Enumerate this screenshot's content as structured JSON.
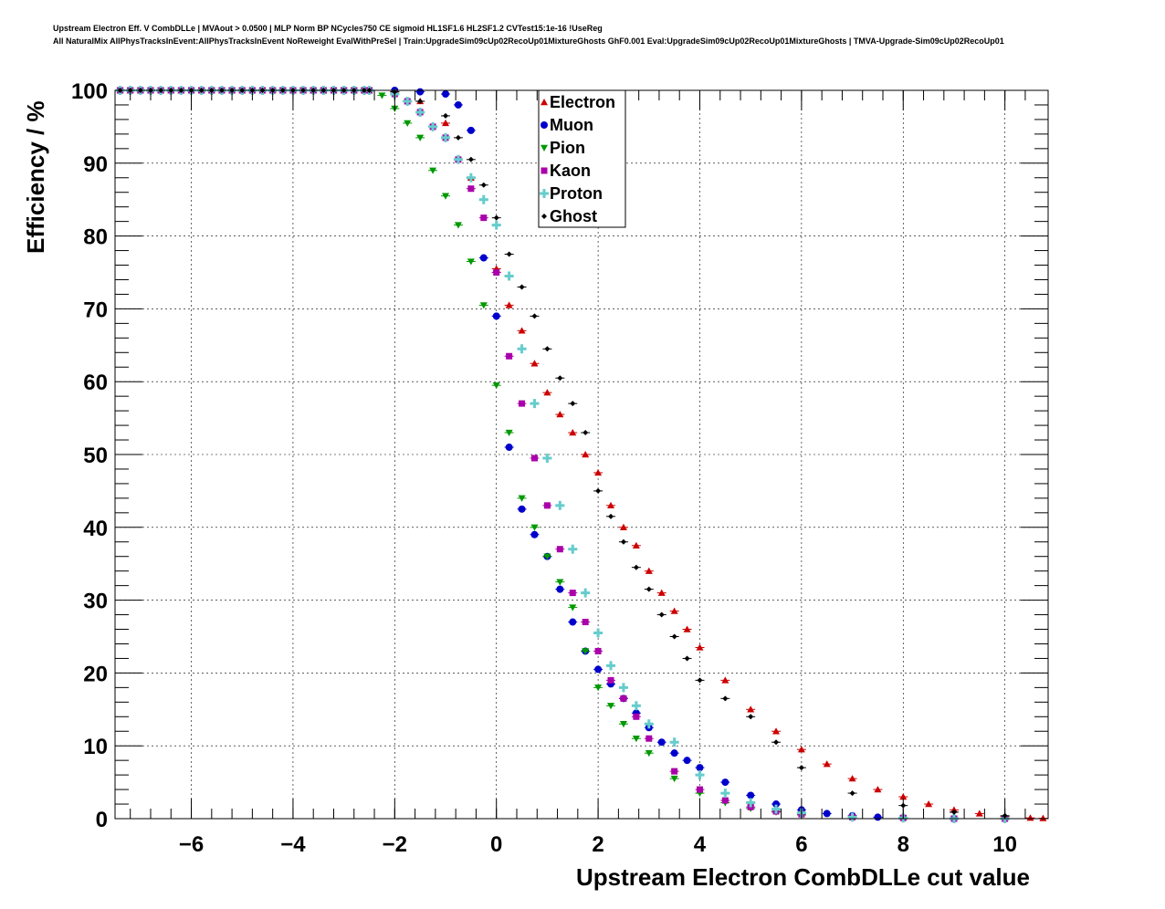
{
  "header": {
    "title_line1": "Upstream Electron Eff. V CombDLLe | MVAout > 0.0500 | MLP Norm BP NCycles750 CE sigmoid HL1SF1.6 HL2SF1.2 CVTest15:1e-16 !UseReg",
    "title_line2": "All NaturalMix AllPhysTracksInEvent:AllPhysTracksInEvent NoReweight EvalWithPreSel | Train:UpgradeSim09cUp02RecoUp01MixtureGhosts GhF0.001 Eval:UpgradeSim09cUp02RecoUp01MixtureGhosts | TMVA-Upgrade-Sim09cUp02RecoUp01"
  },
  "chart_data": {
    "type": "scatter",
    "xlabel": "Upstream Electron CombDLLe cut value",
    "ylabel": "Efficiency / %",
    "xlim": [
      -7.5,
      10.85
    ],
    "ylim": [
      0,
      100
    ],
    "xticks": [
      -6,
      -4,
      -2,
      0,
      2,
      4,
      6,
      8,
      10
    ],
    "xtick_labels": [
      "−6",
      "−4",
      "−2",
      "0",
      "2",
      "4",
      "6",
      "8",
      "10"
    ],
    "yticks": [
      0,
      10,
      20,
      30,
      40,
      50,
      60,
      70,
      80,
      90,
      100
    ],
    "ytick_labels": [
      "0",
      "10",
      "20",
      "30",
      "40",
      "50",
      "60",
      "70",
      "80",
      "90",
      "100"
    ],
    "grid": true,
    "legend_position": "top-center",
    "series": [
      {
        "name": "Electron",
        "color": "#cc0000",
        "marker": "triangle-up",
        "x": [
          -2.5,
          -2.0,
          -1.5,
          -1.0,
          -0.5,
          0.0,
          0.25,
          0.5,
          0.75,
          1.0,
          1.25,
          1.5,
          1.75,
          2.0,
          2.25,
          2.5,
          2.75,
          3.0,
          3.25,
          3.5,
          3.75,
          4.0,
          4.5,
          5.0,
          5.5,
          6.0,
          6.5,
          7.0,
          7.5,
          8.0,
          8.5,
          9.0,
          9.5,
          10.0,
          10.5,
          10.75
        ],
        "y": [
          100,
          99.8,
          98.5,
          95.5,
          88.0,
          75.5,
          70.5,
          67.0,
          62.5,
          58.5,
          55.5,
          53.0,
          50.0,
          47.5,
          43.0,
          40.0,
          37.5,
          34.0,
          31.0,
          28.5,
          26.0,
          23.5,
          19.0,
          15.0,
          12.0,
          9.5,
          7.5,
          5.5,
          4.0,
          3.0,
          2.0,
          1.2,
          0.7,
          0.3,
          0.1,
          0.05
        ]
      },
      {
        "name": "Muon",
        "color": "#0000cc",
        "marker": "circle",
        "x": [
          -2.5,
          -2.0,
          -1.5,
          -1.0,
          -0.75,
          -0.5,
          -0.25,
          0.0,
          0.25,
          0.5,
          0.75,
          1.0,
          1.25,
          1.5,
          1.75,
          2.0,
          2.25,
          2.5,
          2.75,
          3.0,
          3.25,
          3.5,
          3.75,
          4.0,
          4.5,
          5.0,
          5.5,
          6.0,
          6.5,
          7.0,
          7.5,
          8.0,
          9.0,
          10.0
        ],
        "y": [
          100,
          100,
          99.8,
          99.5,
          98.0,
          94.5,
          77.0,
          69.0,
          51.0,
          42.5,
          39.0,
          36.0,
          31.5,
          27.0,
          23.0,
          20.5,
          18.5,
          16.5,
          14.5,
          12.5,
          10.5,
          9.0,
          8.0,
          7.0,
          5.0,
          3.2,
          2.0,
          1.2,
          0.7,
          0.4,
          0.2,
          0.1,
          0.0,
          0.0
        ]
      },
      {
        "name": "Pion",
        "color": "#009900",
        "marker": "triangle-down",
        "x": [
          -2.5,
          -2.25,
          -2.0,
          -1.75,
          -1.5,
          -1.25,
          -1.0,
          -0.75,
          -0.5,
          -0.25,
          0.0,
          0.25,
          0.5,
          0.75,
          1.0,
          1.25,
          1.5,
          1.75,
          2.0,
          2.25,
          2.5,
          2.75,
          3.0,
          3.5,
          4.0,
          4.5,
          5.0,
          5.5,
          6.0,
          7.0,
          8.0,
          9.0,
          10.0
        ],
        "y": [
          100,
          99.3,
          97.5,
          95.5,
          93.5,
          89.0,
          85.5,
          81.5,
          76.5,
          70.5,
          59.5,
          53.0,
          44.0,
          40.0,
          36.0,
          32.5,
          29.0,
          23.0,
          18.0,
          15.5,
          13.0,
          11.0,
          9.0,
          5.5,
          3.5,
          2.2,
          1.4,
          0.9,
          0.5,
          0.2,
          0.1,
          0.0,
          0.0
        ]
      },
      {
        "name": "Kaon",
        "color": "#aa00aa",
        "marker": "square",
        "x": [
          -2.5,
          -2.0,
          -1.75,
          -1.5,
          -1.25,
          -1.0,
          -0.75,
          -0.5,
          -0.25,
          0.0,
          0.25,
          0.5,
          0.75,
          1.0,
          1.25,
          1.5,
          1.75,
          2.0,
          2.25,
          2.5,
          2.75,
          3.0,
          3.5,
          4.0,
          4.5,
          5.0,
          5.5,
          6.0,
          7.0,
          8.0,
          9.0,
          10.0
        ],
        "y": [
          100,
          99.5,
          98.5,
          97.0,
          95.0,
          93.5,
          90.5,
          86.5,
          82.5,
          75.0,
          63.5,
          57.0,
          49.5,
          43.0,
          37.0,
          31.0,
          27.0,
          23.0,
          19.0,
          16.5,
          14.0,
          11.0,
          6.5,
          4.0,
          2.5,
          1.6,
          1.0,
          0.6,
          0.2,
          0.1,
          0.0,
          0.0
        ]
      },
      {
        "name": "Proton",
        "color": "#66cccc",
        "marker": "cross",
        "x": [
          -2.5,
          -2.0,
          -1.75,
          -1.5,
          -1.25,
          -1.0,
          -0.75,
          -0.5,
          -0.25,
          0.0,
          0.25,
          0.5,
          0.75,
          1.0,
          1.25,
          1.5,
          1.75,
          2.0,
          2.25,
          2.5,
          2.75,
          3.0,
          3.5,
          4.0,
          4.5,
          5.0,
          5.5,
          6.0,
          7.0,
          8.0,
          9.0,
          10.0
        ],
        "y": [
          100,
          99.5,
          98.5,
          97.0,
          95.0,
          93.5,
          90.5,
          88.0,
          85.0,
          81.5,
          74.5,
          64.5,
          57.0,
          49.5,
          43.0,
          37.0,
          31.0,
          25.5,
          21.0,
          18.0,
          15.5,
          13.0,
          10.5,
          6.0,
          3.5,
          2.2,
          1.3,
          0.8,
          0.2,
          0.1,
          0.0,
          0.0
        ]
      },
      {
        "name": "Ghost",
        "color": "#000000",
        "marker": "diamond",
        "x": [
          -2.5,
          -2.0,
          -1.5,
          -1.0,
          -0.75,
          -0.5,
          -0.25,
          0.0,
          0.25,
          0.5,
          0.75,
          1.0,
          1.25,
          1.5,
          1.75,
          2.0,
          2.25,
          2.5,
          2.75,
          3.0,
          3.25,
          3.5,
          3.75,
          4.0,
          4.5,
          5.0,
          5.5,
          6.0,
          7.0,
          8.0,
          9.0,
          10.0
        ],
        "y": [
          100,
          99.8,
          98.5,
          96.5,
          93.5,
          90.5,
          87.0,
          82.5,
          77.5,
          73.0,
          69.0,
          64.5,
          60.5,
          57.0,
          53.0,
          45.0,
          41.5,
          38.0,
          34.5,
          31.5,
          28.0,
          25.0,
          22.0,
          19.0,
          16.5,
          14.0,
          10.5,
          7.0,
          3.5,
          1.8,
          0.9,
          0.4
        ]
      }
    ]
  }
}
